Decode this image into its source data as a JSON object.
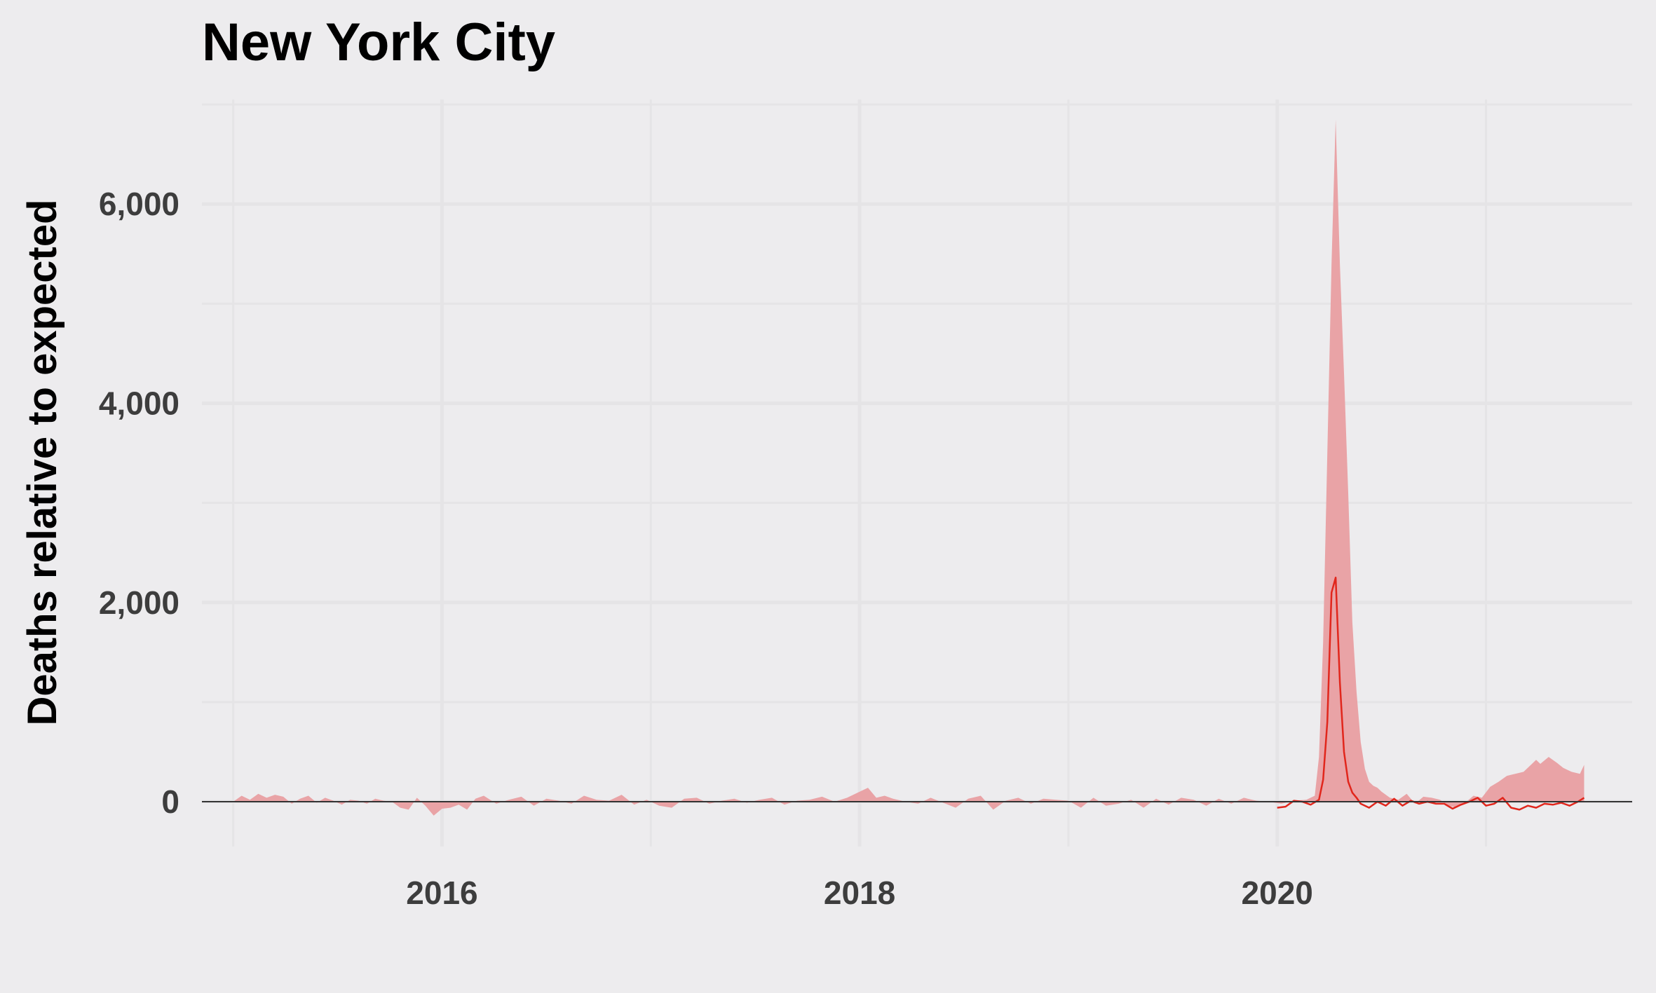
{
  "chart_data": {
    "type": "area",
    "title": "New York City",
    "xlabel": "",
    "ylabel": "Deaths relative to expected",
    "x_axis": {
      "range": [
        2014.85,
        2021.7
      ],
      "ticks": [
        2016,
        2018,
        2020
      ],
      "tick_labels": [
        "2016",
        "2018",
        "2020"
      ],
      "minor_ticks": [
        2015,
        2017,
        2019,
        2021
      ]
    },
    "y_axis": {
      "range": [
        -450,
        7050
      ],
      "ticks": [
        0,
        2000,
        4000,
        6000
      ],
      "tick_labels": [
        "0",
        "2,000",
        "4,000",
        "6,000"
      ],
      "minor_ticks": [
        1000,
        3000,
        5000,
        7000
      ]
    },
    "grid": true,
    "colors": {
      "background": "#edecee",
      "grid": "#e5e4e6",
      "area_fill": "#e9a3a6",
      "line": "#e1261c",
      "zero_line": "#333333"
    },
    "series": [
      {
        "kind": "area",
        "x": [
          2015.0,
          2015.04,
          2015.08,
          2015.12,
          2015.16,
          2015.2,
          2015.24,
          2015.28,
          2015.32,
          2015.36,
          2015.4,
          2015.44,
          2015.48,
          2015.52,
          2015.56,
          2015.6,
          2015.64,
          2015.68,
          2015.72,
          2015.76,
          2015.8,
          2015.84,
          2015.88,
          2015.92,
          2015.96,
          2016.0,
          2016.04,
          2016.08,
          2016.12,
          2016.16,
          2016.2,
          2016.26,
          2016.32,
          2016.38,
          2016.44,
          2016.5,
          2016.56,
          2016.62,
          2016.68,
          2016.74,
          2016.8,
          2016.86,
          2016.92,
          2016.98,
          2017.04,
          2017.1,
          2017.16,
          2017.22,
          2017.28,
          2017.34,
          2017.4,
          2017.46,
          2017.52,
          2017.58,
          2017.64,
          2017.7,
          2017.76,
          2017.82,
          2017.88,
          2017.94,
          2018.0,
          2018.04,
          2018.08,
          2018.12,
          2018.16,
          2018.22,
          2018.28,
          2018.34,
          2018.4,
          2018.46,
          2018.52,
          2018.58,
          2018.64,
          2018.7,
          2018.76,
          2018.82,
          2018.88,
          2018.94,
          2019.0,
          2019.06,
          2019.12,
          2019.18,
          2019.24,
          2019.3,
          2019.36,
          2019.42,
          2019.48,
          2019.54,
          2019.6,
          2019.66,
          2019.72,
          2019.78,
          2019.84,
          2019.9,
          2019.96,
          2020.02,
          2020.08,
          2020.14,
          2020.18,
          2020.2,
          2020.22,
          2020.24,
          2020.26,
          2020.28,
          2020.3,
          2020.32,
          2020.34,
          2020.36,
          2020.38,
          2020.4,
          2020.42,
          2020.44,
          2020.46,
          2020.48,
          2020.5,
          2020.54,
          2020.58,
          2020.62,
          2020.66,
          2020.7,
          2020.74,
          2020.78,
          2020.82,
          2020.86,
          2020.9,
          2020.94,
          2020.98,
          2021.02,
          2021.06,
          2021.1,
          2021.14,
          2021.18,
          2021.22,
          2021.24,
          2021.26,
          2021.3,
          2021.34,
          2021.37,
          2021.39,
          2021.41,
          2021.45,
          2021.47
        ],
        "y": [
          0,
          60,
          20,
          80,
          40,
          70,
          50,
          -20,
          30,
          60,
          -10,
          40,
          10,
          -30,
          20,
          10,
          -20,
          30,
          10,
          0,
          -60,
          -80,
          40,
          -40,
          -140,
          -70,
          -60,
          -30,
          -80,
          30,
          60,
          -20,
          20,
          50,
          -40,
          30,
          10,
          -20,
          60,
          20,
          10,
          70,
          -30,
          20,
          -40,
          -60,
          30,
          40,
          -20,
          10,
          30,
          -10,
          20,
          40,
          -30,
          10,
          20,
          50,
          0,
          40,
          100,
          140,
          40,
          60,
          30,
          0,
          -20,
          40,
          -10,
          -60,
          30,
          60,
          -80,
          10,
          40,
          -20,
          30,
          20,
          10,
          -60,
          40,
          -40,
          -20,
          20,
          -60,
          30,
          -30,
          40,
          20,
          -40,
          30,
          -20,
          40,
          10,
          0,
          -20,
          10,
          20,
          60,
          450,
          1600,
          3500,
          5400,
          6850,
          5400,
          4300,
          3100,
          1800,
          1100,
          600,
          330,
          200,
          160,
          140,
          100,
          40,
          20,
          80,
          -20,
          50,
          40,
          20,
          -40,
          -60,
          -10,
          60,
          40,
          150,
          200,
          260,
          280,
          300,
          380,
          420,
          380,
          450,
          390,
          340,
          320,
          300,
          280,
          370
        ],
        "note": "excess-death band (shaded)"
      },
      {
        "kind": "line",
        "x": [
          2020.0,
          2020.04,
          2020.08,
          2020.12,
          2020.16,
          2020.2,
          2020.22,
          2020.24,
          2020.26,
          2020.28,
          2020.3,
          2020.32,
          2020.34,
          2020.36,
          2020.38,
          2020.4,
          2020.44,
          2020.48,
          2020.52,
          2020.56,
          2020.6,
          2020.64,
          2020.68,
          2020.72,
          2020.76,
          2020.8,
          2020.84,
          2020.88,
          2020.92,
          2020.96,
          2021.0,
          2021.04,
          2021.08,
          2021.12,
          2021.16,
          2021.2,
          2021.24,
          2021.28,
          2021.32,
          2021.36,
          2021.4,
          2021.44,
          2021.47
        ],
        "y": [
          -60,
          -50,
          10,
          0,
          -30,
          20,
          220,
          800,
          2100,
          2250,
          1200,
          500,
          200,
          90,
          40,
          -20,
          -60,
          0,
          -40,
          30,
          -40,
          10,
          -20,
          0,
          -20,
          -20,
          -70,
          -30,
          0,
          40,
          -40,
          -20,
          40,
          -60,
          -80,
          -40,
          -60,
          -20,
          -30,
          -10,
          -40,
          0,
          40
        ],
        "note": "observed weekly line (red)"
      }
    ]
  }
}
